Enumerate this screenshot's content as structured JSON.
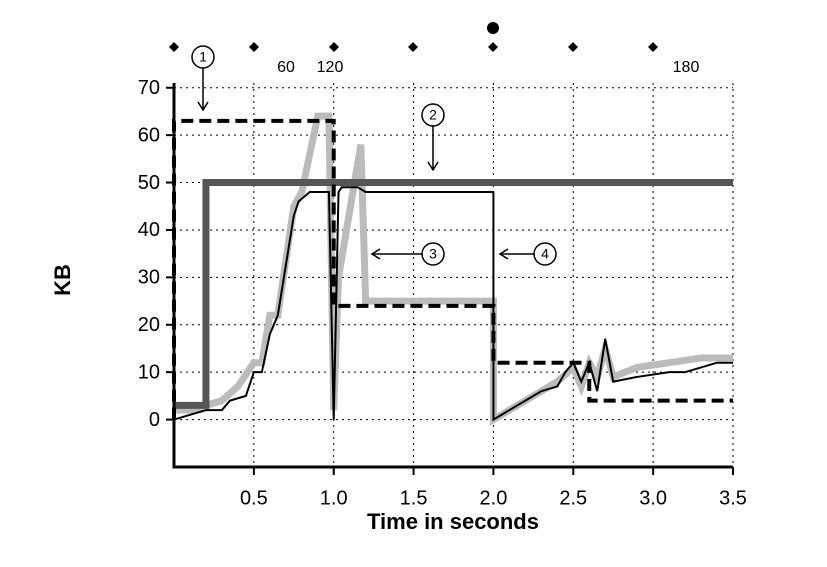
{
  "chart_data": {
    "type": "line",
    "x_label": "Time in seconds",
    "y_label": "KB",
    "xlim": [
      0,
      3.5
    ],
    "ylim": [
      -10,
      71
    ],
    "xticks": [
      0.5,
      {
        "value": 1.0,
        "label": "1.0"
      },
      1.5,
      {
        "value": 2.0,
        "label": "2.0"
      },
      2.5,
      {
        "value": 3.0,
        "label": "3.0"
      },
      3.5
    ],
    "yticks": [
      0,
      10,
      20,
      30,
      40,
      50,
      60,
      70
    ],
    "grid": true,
    "top_labels": [
      "60",
      "120",
      "180"
    ],
    "annotations": [
      "1",
      "2",
      "3",
      "4"
    ],
    "series": [
      {
        "color": "#bbbbbb",
        "width": 7,
        "dashed": false,
        "x": [
          0,
          0.1,
          0.2,
          0.3,
          0.4,
          0.5,
          0.55,
          0.6,
          0.65,
          0.75,
          0.8,
          0.9,
          0.97,
          1.0,
          1.03,
          1.17,
          1.2,
          2.0,
          2.0,
          2.1,
          2.2,
          2.3,
          2.4,
          2.5,
          2.55,
          2.6,
          2.65,
          2.7,
          2.75,
          2.9,
          3.1,
          3.3,
          3.5
        ],
        "values": [
          2,
          2,
          3,
          4,
          7,
          12,
          12,
          22,
          22,
          45,
          48,
          64,
          64,
          2,
          30,
          58,
          25,
          25,
          0,
          2,
          4,
          6,
          8,
          11,
          7,
          12,
          9,
          15,
          9,
          11,
          12,
          13,
          13
        ]
      },
      {
        "color": "#555555",
        "width": 7,
        "dashed": false,
        "x": [
          0,
          0.2,
          0.2,
          3.5
        ],
        "values": [
          3,
          3,
          50,
          50
        ]
      },
      {
        "color": "#000000",
        "width": 4,
        "dashed": true,
        "x": [
          0,
          0,
          1.0,
          1.0,
          2.0,
          2.0,
          2.6,
          2.6,
          3.5
        ],
        "values": [
          0,
          63,
          63,
          24,
          24,
          12,
          12,
          4,
          4
        ]
      },
      {
        "color": "#000000",
        "width": 2,
        "dashed": false,
        "x": [
          0,
          0.1,
          0.2,
          0.3,
          0.35,
          0.45,
          0.5,
          0.55,
          0.6,
          0.65,
          0.75,
          0.78,
          0.85,
          0.93,
          0.97,
          1.0,
          1.03,
          1.05,
          1.15,
          1.2,
          2.0,
          2.0,
          2.1,
          2.2,
          2.3,
          2.4,
          2.45,
          2.5,
          2.55,
          2.6,
          2.65,
          2.7,
          2.75,
          2.9,
          3.1,
          3.2,
          3.4,
          3.5
        ],
        "values": [
          0,
          1,
          2,
          2,
          4,
          5,
          10,
          10,
          18,
          22,
          43,
          46,
          48,
          48,
          48,
          0,
          48,
          49,
          49,
          48,
          48,
          0,
          2,
          4,
          6,
          7,
          10,
          12,
          8,
          12,
          6,
          17,
          8,
          9,
          10,
          10,
          12,
          12
        ]
      }
    ]
  }
}
